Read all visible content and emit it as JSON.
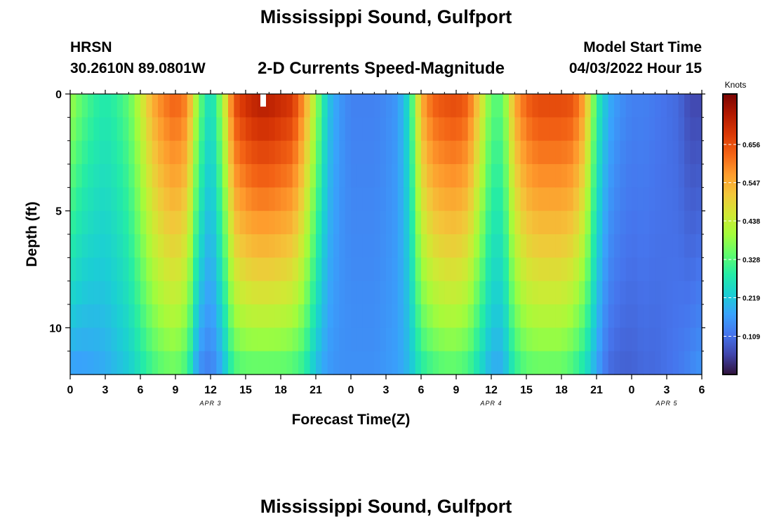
{
  "header": {
    "title": "Mississippi Sound, Gulfport",
    "station_code": "HRSN",
    "station_coords": "30.2610N  89.0801W",
    "subtitle": "2-D Currents Speed-Magnitude",
    "model_start_label": "Model Start Time",
    "model_start_value": "04/03/2022 Hour 15"
  },
  "footer": {
    "title": "Mississippi Sound, Gulfport"
  },
  "chart_data": {
    "type": "heatmap",
    "title": "2-D Currents Speed-Magnitude",
    "xlabel": "Forecast Time(Z)",
    "ylabel": "Depth (ft)",
    "colorbar_label": "Knots",
    "xlim": [
      0,
      54
    ],
    "ylim": [
      0,
      12
    ],
    "x_ticks": [
      0,
      3,
      6,
      9,
      12,
      15,
      18,
      21,
      24,
      27,
      30,
      33,
      36,
      39,
      42,
      45,
      48,
      51,
      54
    ],
    "x_tick_labels": [
      "0",
      "3",
      "6",
      "9",
      "12",
      "15",
      "18",
      "21",
      "0",
      "3",
      "6",
      "9",
      "12",
      "15",
      "18",
      "21",
      "0",
      "3",
      "6"
    ],
    "date_labels": [
      {
        "x": 12,
        "text": "APR 3"
      },
      {
        "x": 36,
        "text": "APR 4"
      },
      {
        "x": 51,
        "text": "APR 5"
      }
    ],
    "y_ticks": [
      0,
      5,
      10
    ],
    "y_tick_labels": [
      "0",
      "5",
      "10"
    ],
    "colorbar_range": [
      0.0,
      0.8
    ],
    "colorbar_ticks": [
      0.109,
      0.219,
      0.328,
      0.438,
      0.547,
      0.656
    ],
    "colorbar_tick_labels": [
      "0.109",
      "0.219",
      "0.328",
      "0.438",
      "0.547",
      "0.656"
    ],
    "colormap": [
      "#30123b",
      "#4145ab",
      "#4675ed",
      "#39a2fc",
      "#1bcfd4",
      "#24eca6",
      "#61fc6c",
      "#a4fc3b",
      "#d1e834",
      "#f3c63a",
      "#fe9b2d",
      "#f36315",
      "#d93806",
      "#b11901",
      "#7a0403"
    ],
    "speed_profile_hours": [
      0,
      1,
      2,
      3,
      4,
      5,
      6,
      7,
      8,
      9,
      10,
      11,
      12,
      13,
      14,
      15,
      16,
      17,
      18,
      19,
      20,
      21,
      22,
      23,
      24,
      25,
      26,
      27,
      28,
      29,
      30,
      31,
      32,
      33,
      34,
      35,
      36,
      37,
      38,
      39,
      40,
      41,
      42,
      43,
      44,
      45,
      46,
      47,
      48,
      49,
      50,
      51,
      52,
      53,
      54
    ],
    "surface_speed_knots": [
      0.4,
      0.34,
      0.3,
      0.28,
      0.3,
      0.34,
      0.44,
      0.55,
      0.61,
      0.64,
      0.6,
      0.36,
      0.24,
      0.4,
      0.66,
      0.71,
      0.74,
      0.74,
      0.72,
      0.7,
      0.58,
      0.4,
      0.22,
      0.16,
      0.13,
      0.13,
      0.13,
      0.14,
      0.16,
      0.26,
      0.55,
      0.64,
      0.66,
      0.67,
      0.64,
      0.5,
      0.34,
      0.34,
      0.56,
      0.64,
      0.67,
      0.67,
      0.67,
      0.66,
      0.56,
      0.3,
      0.19,
      0.15,
      0.13,
      0.13,
      0.12,
      0.11,
      0.1,
      0.06,
      0.06
    ],
    "bottom_speed_knots": [
      0.16,
      0.16,
      0.17,
      0.18,
      0.2,
      0.22,
      0.26,
      0.3,
      0.33,
      0.34,
      0.3,
      0.14,
      0.12,
      0.18,
      0.3,
      0.32,
      0.32,
      0.32,
      0.32,
      0.31,
      0.28,
      0.2,
      0.16,
      0.15,
      0.15,
      0.15,
      0.15,
      0.16,
      0.17,
      0.2,
      0.27,
      0.3,
      0.32,
      0.32,
      0.3,
      0.24,
      0.18,
      0.18,
      0.28,
      0.32,
      0.33,
      0.33,
      0.33,
      0.3,
      0.25,
      0.17,
      0.1,
      0.09,
      0.09,
      0.1,
      0.1,
      0.11,
      0.12,
      0.14,
      0.16
    ],
    "marker_hour": 16.5
  }
}
